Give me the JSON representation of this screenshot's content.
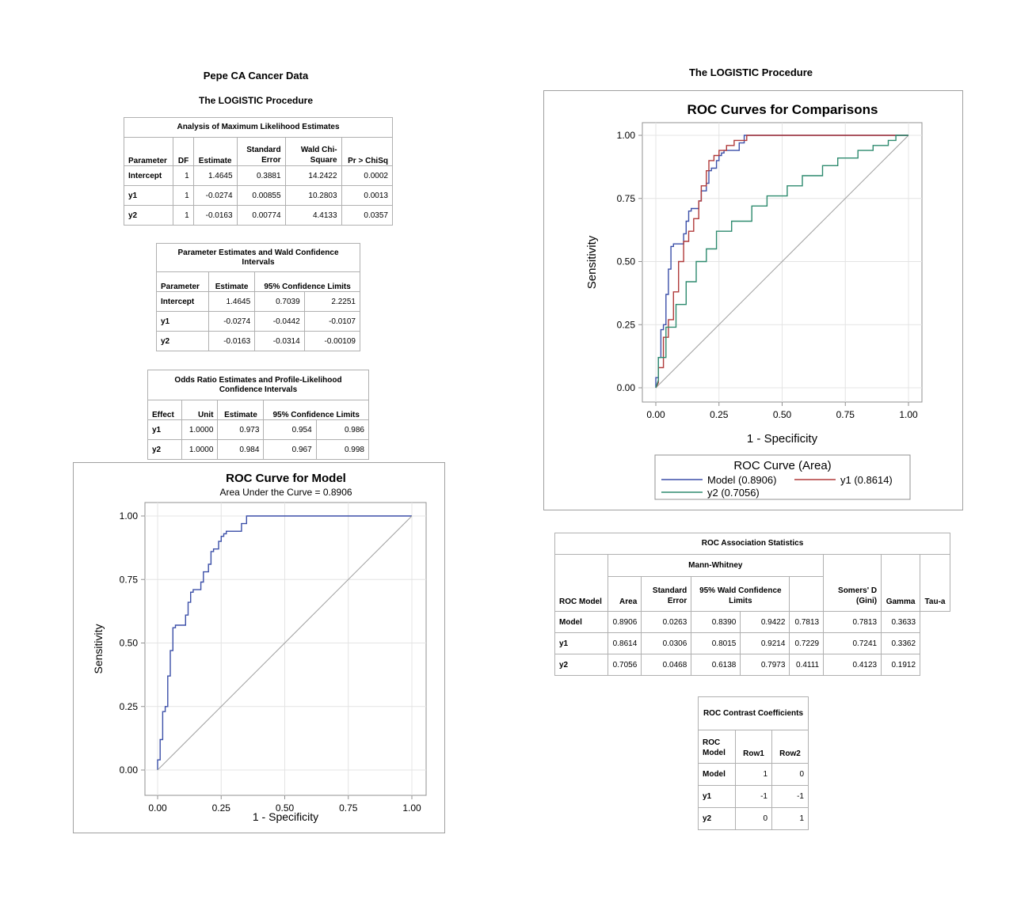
{
  "left": {
    "title1": "Pepe CA Cancer Data",
    "title2": "The LOGISTIC Procedure"
  },
  "right": {
    "title": "The LOGISTIC Procedure"
  },
  "mle_table": {
    "caption": "Analysis of Maximum Likelihood Estimates",
    "headers": [
      "Parameter",
      "DF",
      "Estimate",
      "Standard Error",
      "Wald Chi-Square",
      "Pr > ChiSq"
    ],
    "rows": [
      [
        "Intercept",
        "1",
        "1.4645",
        "0.3881",
        "14.2422",
        "0.0002"
      ],
      [
        "y1",
        "1",
        "-0.0274",
        "0.00855",
        "10.2803",
        "0.0013"
      ],
      [
        "y2",
        "1",
        "-0.0163",
        "0.00774",
        "4.4133",
        "0.0357"
      ]
    ]
  },
  "wald_table": {
    "caption": "Parameter Estimates and Wald Confidence Intervals",
    "headers": [
      "Parameter",
      "Estimate",
      "95% Confidence Limits"
    ],
    "rows": [
      [
        "Intercept",
        "1.4645",
        "0.7039",
        "2.2251"
      ],
      [
        "y1",
        "-0.0274",
        "-0.0442",
        "-0.0107"
      ],
      [
        "y2",
        "-0.0163",
        "-0.0314",
        "-0.00109"
      ]
    ]
  },
  "odds_table": {
    "caption": "Odds Ratio Estimates and Profile-Likelihood Confidence Intervals",
    "headers": [
      "Effect",
      "Unit",
      "Estimate",
      "95% Confidence Limits"
    ],
    "rows": [
      [
        "y1",
        "1.0000",
        "0.973",
        "0.954",
        "0.986"
      ],
      [
        "y2",
        "1.0000",
        "0.984",
        "0.967",
        "0.998"
      ]
    ]
  },
  "assoc_table": {
    "caption": "ROC Association Statistics",
    "group_header": "Mann-Whitney",
    "headers": [
      "ROC Model",
      "Area",
      "Standard Error",
      "95% Wald Confidence Limits",
      "Somers' D (Gini)",
      "Gamma",
      "Tau-a"
    ],
    "rows": [
      [
        "Model",
        "0.8906",
        "0.0263",
        "0.8390",
        "0.9422",
        "0.7813",
        "0.7813",
        "0.3633"
      ],
      [
        "y1",
        "0.8614",
        "0.0306",
        "0.8015",
        "0.9214",
        "0.7229",
        "0.7241",
        "0.3362"
      ],
      [
        "y2",
        "0.7056",
        "0.0468",
        "0.6138",
        "0.7973",
        "0.4111",
        "0.4123",
        "0.1912"
      ]
    ]
  },
  "contrast_table": {
    "caption": "ROC Contrast Coefficients",
    "headers": [
      "ROC Model",
      "Row1",
      "Row2"
    ],
    "rows": [
      [
        "Model",
        "1",
        "0"
      ],
      [
        "y1",
        "-1",
        "-1"
      ],
      [
        "y2",
        "0",
        "1"
      ]
    ]
  },
  "chart_data": [
    {
      "type": "line",
      "title": "ROC Curve for Model",
      "subtitle": "Area Under the Curve = 0.8906",
      "xlabel": "1 - Specificity",
      "ylabel": "Sensitivity",
      "xlim": [
        0,
        1
      ],
      "ylim": [
        0,
        1
      ],
      "xticks": [
        "0.00",
        "0.25",
        "0.50",
        "0.75",
        "1.00"
      ],
      "yticks": [
        "0.00",
        "0.25",
        "0.50",
        "0.75",
        "1.00"
      ],
      "grid": true,
      "series": [
        {
          "color": "#3b4fa8",
          "x": [
            0,
            0,
            0.01,
            0.01,
            0.02,
            0.02,
            0.03,
            0.03,
            0.04,
            0.04,
            0.05,
            0.05,
            0.06,
            0.06,
            0.07,
            0.07,
            0.11,
            0.11,
            0.12,
            0.12,
            0.13,
            0.13,
            0.14,
            0.14,
            0.17,
            0.17,
            0.18,
            0.18,
            0.2,
            0.2,
            0.21,
            0.21,
            0.22,
            0.22,
            0.24,
            0.24,
            0.25,
            0.25,
            0.26,
            0.26,
            0.27,
            0.27,
            0.29,
            0.29,
            0.33,
            0.33,
            0.35,
            0.35,
            1.0
          ],
          "y": [
            0,
            0.04,
            0.04,
            0.12,
            0.12,
            0.23,
            0.23,
            0.25,
            0.25,
            0.37,
            0.37,
            0.47,
            0.47,
            0.56,
            0.56,
            0.57,
            0.57,
            0.61,
            0.61,
            0.66,
            0.66,
            0.7,
            0.7,
            0.71,
            0.71,
            0.74,
            0.74,
            0.78,
            0.78,
            0.81,
            0.81,
            0.86,
            0.86,
            0.87,
            0.87,
            0.9,
            0.9,
            0.92,
            0.92,
            0.93,
            0.93,
            0.94,
            0.94,
            0.94,
            0.94,
            0.97,
            0.97,
            1.0,
            1.0
          ]
        },
        {
          "color": "#a0a0a0",
          "x": [
            0,
            1
          ],
          "y": [
            0,
            1
          ]
        }
      ]
    },
    {
      "type": "line",
      "title": "ROC Curves for Comparisons",
      "xlabel": "1 - Specificity",
      "ylabel": "Sensitivity",
      "xlim": [
        0,
        1
      ],
      "ylim": [
        0,
        1
      ],
      "xticks": [
        "0.00",
        "0.25",
        "0.50",
        "0.75",
        "1.00"
      ],
      "yticks": [
        "0.00",
        "0.25",
        "0.50",
        "0.75",
        "1.00"
      ],
      "grid": true,
      "legend_title": "ROC Curve (Area)",
      "legend_placement": "bottom",
      "series": [
        {
          "name": "Model (0.8906)",
          "color": "#3b4fa8",
          "x": [
            0,
            0,
            0.01,
            0.01,
            0.02,
            0.02,
            0.03,
            0.03,
            0.04,
            0.04,
            0.05,
            0.05,
            0.06,
            0.06,
            0.07,
            0.07,
            0.11,
            0.11,
            0.12,
            0.12,
            0.13,
            0.13,
            0.14,
            0.14,
            0.17,
            0.17,
            0.18,
            0.18,
            0.2,
            0.2,
            0.21,
            0.21,
            0.22,
            0.22,
            0.24,
            0.24,
            0.25,
            0.25,
            0.26,
            0.26,
            0.27,
            0.27,
            0.29,
            0.29,
            0.33,
            0.33,
            0.35,
            0.35,
            1.0
          ],
          "y": [
            0,
            0.04,
            0.04,
            0.12,
            0.12,
            0.23,
            0.23,
            0.25,
            0.25,
            0.37,
            0.37,
            0.47,
            0.47,
            0.56,
            0.56,
            0.57,
            0.57,
            0.61,
            0.61,
            0.66,
            0.66,
            0.7,
            0.7,
            0.71,
            0.71,
            0.74,
            0.74,
            0.78,
            0.78,
            0.81,
            0.81,
            0.86,
            0.86,
            0.87,
            0.87,
            0.9,
            0.9,
            0.92,
            0.92,
            0.93,
            0.93,
            0.94,
            0.94,
            0.94,
            0.94,
            0.97,
            0.97,
            1.0,
            1.0
          ]
        },
        {
          "name": "y1 (0.8614)",
          "color": "#b03a3a",
          "x": [
            0,
            0.01,
            0.01,
            0.03,
            0.03,
            0.05,
            0.05,
            0.07,
            0.07,
            0.09,
            0.09,
            0.11,
            0.11,
            0.13,
            0.13,
            0.15,
            0.15,
            0.17,
            0.17,
            0.18,
            0.18,
            0.2,
            0.2,
            0.21,
            0.21,
            0.23,
            0.23,
            0.25,
            0.25,
            0.28,
            0.28,
            0.31,
            0.31,
            0.36,
            0.36,
            0.4,
            0.4,
            1.0
          ],
          "y": [
            0,
            0.02,
            0.08,
            0.08,
            0.2,
            0.2,
            0.27,
            0.27,
            0.38,
            0.38,
            0.5,
            0.5,
            0.58,
            0.58,
            0.62,
            0.62,
            0.67,
            0.67,
            0.74,
            0.74,
            0.8,
            0.8,
            0.86,
            0.86,
            0.9,
            0.9,
            0.92,
            0.92,
            0.94,
            0.94,
            0.96,
            0.96,
            0.98,
            0.98,
            1.0,
            1.0,
            1.0,
            1.0
          ]
        },
        {
          "name": "y2 (0.7056)",
          "color": "#2d8a6e",
          "x": [
            0,
            0.01,
            0.01,
            0.04,
            0.04,
            0.08,
            0.08,
            0.12,
            0.12,
            0.16,
            0.16,
            0.2,
            0.2,
            0.24,
            0.24,
            0.3,
            0.3,
            0.38,
            0.38,
            0.44,
            0.44,
            0.52,
            0.52,
            0.58,
            0.58,
            0.66,
            0.66,
            0.72,
            0.72,
            0.8,
            0.8,
            0.86,
            0.86,
            0.92,
            0.92,
            0.95,
            0.95,
            1.0
          ],
          "y": [
            0,
            0.03,
            0.12,
            0.12,
            0.24,
            0.24,
            0.33,
            0.33,
            0.42,
            0.42,
            0.5,
            0.5,
            0.55,
            0.55,
            0.62,
            0.62,
            0.66,
            0.66,
            0.72,
            0.72,
            0.76,
            0.76,
            0.8,
            0.8,
            0.84,
            0.84,
            0.88,
            0.88,
            0.91,
            0.91,
            0.94,
            0.94,
            0.96,
            0.96,
            0.98,
            0.98,
            1.0,
            1.0
          ]
        },
        {
          "color": "#a0a0a0",
          "x": [
            0,
            1
          ],
          "y": [
            0,
            1
          ]
        }
      ]
    }
  ]
}
